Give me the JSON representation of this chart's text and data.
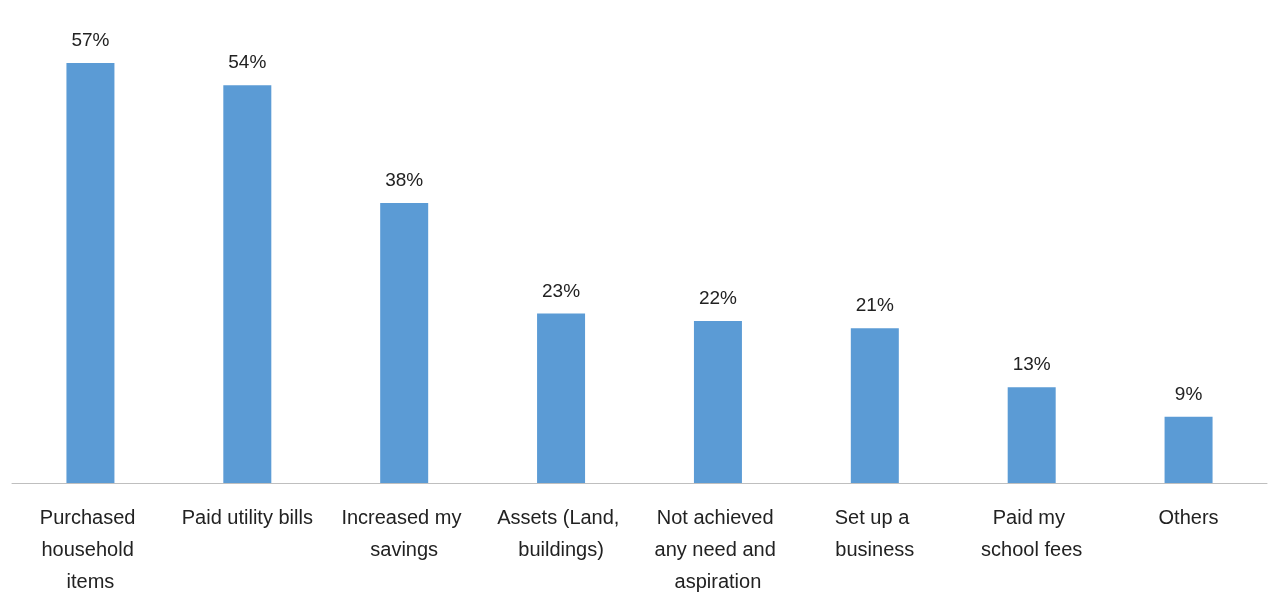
{
  "chart_data": {
    "type": "bar",
    "categories": [
      "Purchased household items",
      "Paid utility bills",
      "Increased my savings",
      "Assets (Land, buildings)",
      "Not achieved any need and aspiration",
      "Set up a business",
      "Paid my school fees",
      "Others"
    ],
    "values": [
      57,
      54,
      38,
      23,
      22,
      21,
      13,
      9
    ],
    "value_labels": [
      "57%",
      "54%",
      "38%",
      "23%",
      "22%",
      "21%",
      "13%",
      "9%"
    ],
    "color": "#5b9bd5"
  }
}
